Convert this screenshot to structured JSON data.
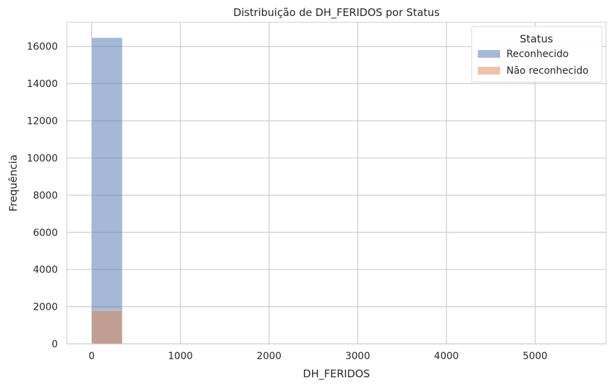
{
  "chart_data": {
    "type": "bar",
    "title": "Distribuição de DH_FERIDOS por Status",
    "xlabel": "DH_FERIDOS",
    "ylabel": "Frequência",
    "xlim": [
      -280,
      5800
    ],
    "ylim": [
      0,
      17300
    ],
    "xticks": [
      0,
      1000,
      2000,
      3000,
      4000,
      5000
    ],
    "yticks": [
      0,
      2000,
      4000,
      6000,
      8000,
      10000,
      12000,
      14000,
      16000
    ],
    "grid": true,
    "legend": {
      "title": "Status",
      "placement": "top-right"
    },
    "bin_width": 345,
    "series": [
      {
        "name": "Reconhecido",
        "color": "#4c72b0",
        "opacity": 0.5,
        "bins": [
          {
            "x0": 0,
            "x1": 345,
            "count": 16470
          }
        ]
      },
      {
        "name": "Não reconhecido",
        "color": "#dd8452",
        "opacity": 0.5,
        "bins": [
          {
            "x0": 0,
            "x1": 345,
            "count": 1800
          }
        ]
      }
    ]
  }
}
